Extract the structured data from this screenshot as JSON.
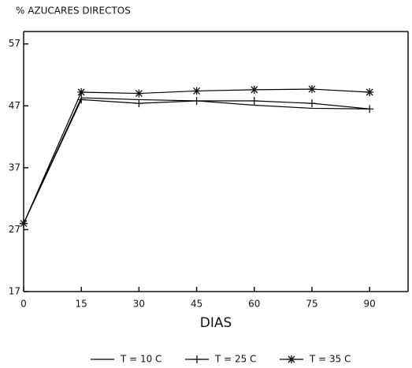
{
  "chart_data": {
    "type": "line",
    "title": "% AZUCARES DIRECTOS",
    "xlabel": "DIAS",
    "x": [
      0,
      15,
      30,
      45,
      60,
      75,
      90
    ],
    "xlim": [
      0,
      100
    ],
    "xticks": [
      0,
      15,
      30,
      45,
      60,
      75,
      90
    ],
    "ylim": [
      17,
      59
    ],
    "yticks": [
      17,
      27,
      37,
      47,
      57
    ],
    "legend": "bottom",
    "series": [
      {
        "name": "T = 10 C",
        "color": "#000000",
        "marker": "none",
        "values": [
          28,
          48.3,
          48,
          47.8,
          47.1,
          46.6,
          46.5
        ]
      },
      {
        "name": "T = 25 C",
        "color": "#000000",
        "marker": "plus",
        "values": [
          28,
          48,
          47.4,
          47.8,
          47.8,
          47.4,
          46.5
        ]
      },
      {
        "name": "T = 35 C",
        "color": "#000000",
        "marker": "star",
        "values": [
          28,
          49.2,
          49,
          49.4,
          49.6,
          49.7,
          49.2
        ]
      }
    ]
  }
}
